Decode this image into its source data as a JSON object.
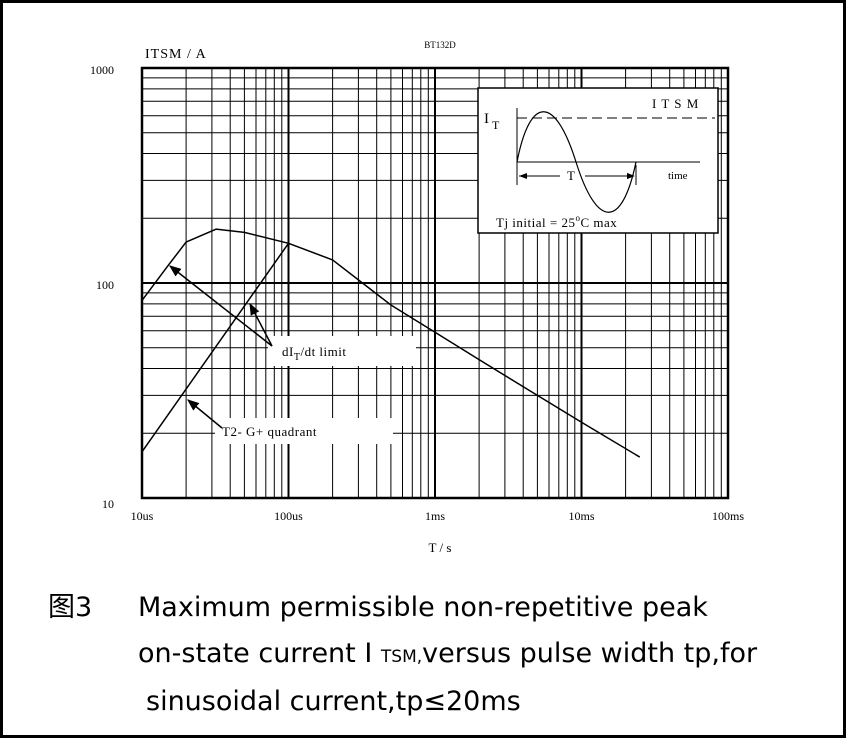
{
  "chart_data": {
    "type": "line",
    "title": "BT132D",
    "y_label": "ITSM / A",
    "x_label": "T / s",
    "log_x": true,
    "log_y": true,
    "grid": true,
    "color": "#000000",
    "xlim": [
      1e-05,
      0.1
    ],
    "ylim": [
      10,
      1000
    ],
    "xticks": [
      {
        "value": 1e-05,
        "label": "10us"
      },
      {
        "value": 0.0001,
        "label": "100us"
      },
      {
        "value": 0.001,
        "label": "1ms"
      },
      {
        "value": 0.01,
        "label": "10ms"
      },
      {
        "value": 0.1,
        "label": "100ms"
      }
    ],
    "yticks": [
      10,
      100,
      1000
    ],
    "series": [
      {
        "x": [
          1e-05,
          1.5e-05,
          2e-05,
          3.2e-05,
          5e-05,
          0.0001,
          0.0002,
          0.0005,
          0.001,
          0.002,
          0.005,
          0.01,
          0.025
        ],
        "values": [
          83,
          120,
          155,
          178,
          172,
          153,
          128,
          79,
          59,
          44,
          30,
          22.5,
          15.5
        ]
      },
      {
        "x": [
          1e-05,
          0.0001
        ],
        "values": [
          16.4,
          153
        ]
      }
    ],
    "annotations": [
      [
        "dI",
        "T",
        "/dt limit"
      ],
      [
        "T2- G+ quadrant"
      ]
    ],
    "inset": {
      "y_label": [
        "I",
        "T"
      ],
      "level_label": "I T S M",
      "period_label": "T",
      "x_label": "time",
      "note": [
        "Tj initial = 25",
        "o",
        "C max"
      ]
    }
  },
  "caption": {
    "figure": "图3",
    "lines": [
      [
        "Maximum permissible non-repetitive peak"
      ],
      [
        "on-state current I ",
        "TSM,",
        "versus pulse width tp,for"
      ],
      [
        "sinusoidal current,tp≤20ms"
      ]
    ]
  }
}
